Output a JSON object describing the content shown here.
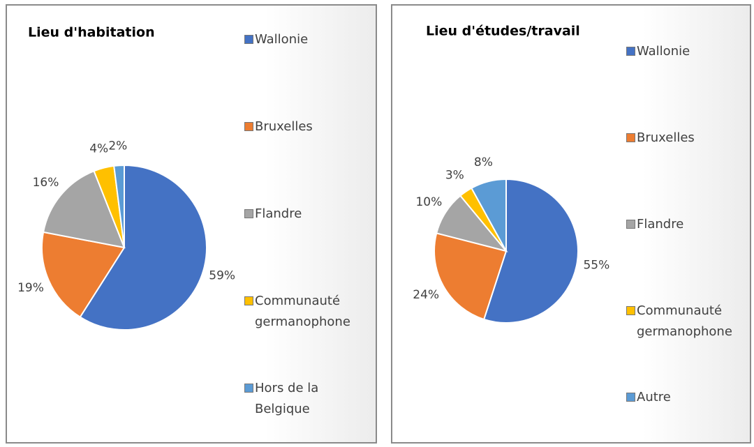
{
  "chart_data": [
    {
      "type": "pie",
      "title": "Lieu d'habitation",
      "categories": [
        "Wallonie",
        "Bruxelles",
        "Flandre",
        "Communauté germanophone",
        "Hors de la Belgique"
      ],
      "values": [
        59,
        19,
        16,
        4,
        2
      ],
      "value_labels": [
        "59%",
        "19%",
        "16%",
        "4%",
        "2%"
      ],
      "colors": [
        "#4472c4",
        "#ed7d31",
        "#a5a5a5",
        "#ffc000",
        "#5b9bd5"
      ]
    },
    {
      "type": "pie",
      "title": "Lieu d'études/travail",
      "categories": [
        "Wallonie",
        "Bruxelles",
        "Flandre",
        "Communauté germanophone",
        "Autre"
      ],
      "values": [
        55,
        24,
        10,
        3,
        8
      ],
      "value_labels": [
        "55%",
        "24%",
        "10%",
        "3%",
        "8%"
      ],
      "colors": [
        "#4472c4",
        "#ed7d31",
        "#a5a5a5",
        "#ffc000",
        "#5b9bd5"
      ]
    }
  ]
}
